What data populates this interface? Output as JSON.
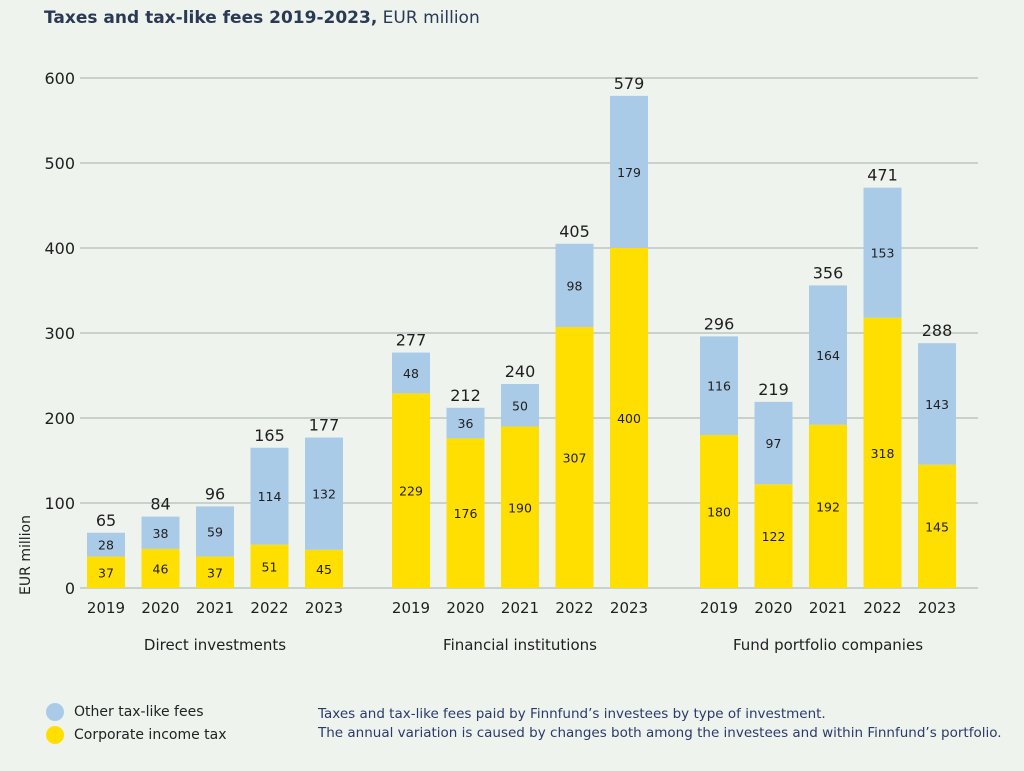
{
  "title": {
    "bold": "Taxes and tax-like fees 2019-2023,",
    "rest": " EUR million"
  },
  "colors": {
    "other": "#a9cbe8",
    "corporate": "#ffdf00",
    "grid": "#a6aca8",
    "text": "#1f1f1f"
  },
  "chart_data": {
    "type": "bar",
    "stacked": true,
    "ylabel": "EUR million",
    "ylim": [
      0,
      600
    ],
    "yticks": [
      0,
      100,
      200,
      300,
      400,
      500,
      600
    ],
    "grid": true,
    "legend_position": "bottom-left",
    "groups": [
      {
        "name": "Direct investments",
        "categories": [
          "2019",
          "2020",
          "2021",
          "2022",
          "2023"
        ],
        "corporate": [
          37,
          46,
          37,
          51,
          45
        ],
        "other": [
          28,
          38,
          59,
          114,
          132
        ],
        "totals": [
          65,
          84,
          96,
          165,
          177
        ]
      },
      {
        "name": "Financial institutions",
        "categories": [
          "2019",
          "2020",
          "2021",
          "2022",
          "2023"
        ],
        "corporate": [
          229,
          176,
          190,
          307,
          400
        ],
        "other": [
          48,
          36,
          50,
          98,
          179
        ],
        "totals": [
          277,
          212,
          240,
          405,
          579
        ]
      },
      {
        "name": "Fund portfolio companies",
        "categories": [
          "2019",
          "2020",
          "2021",
          "2022",
          "2023"
        ],
        "corporate": [
          180,
          122,
          192,
          318,
          145
        ],
        "other": [
          116,
          97,
          164,
          153,
          143
        ],
        "totals": [
          296,
          219,
          356,
          471,
          288
        ]
      }
    ],
    "series": [
      {
        "key": "other",
        "name": "Other tax-like fees"
      },
      {
        "key": "corporate",
        "name": "Corporate income tax"
      }
    ]
  },
  "note": {
    "line1": "Taxes and tax-like fees paid by Finnfund’s investees by type of investment.",
    "line2": "The annual variation is caused by changes both among the investees and within Finnfund’s portfolio."
  }
}
